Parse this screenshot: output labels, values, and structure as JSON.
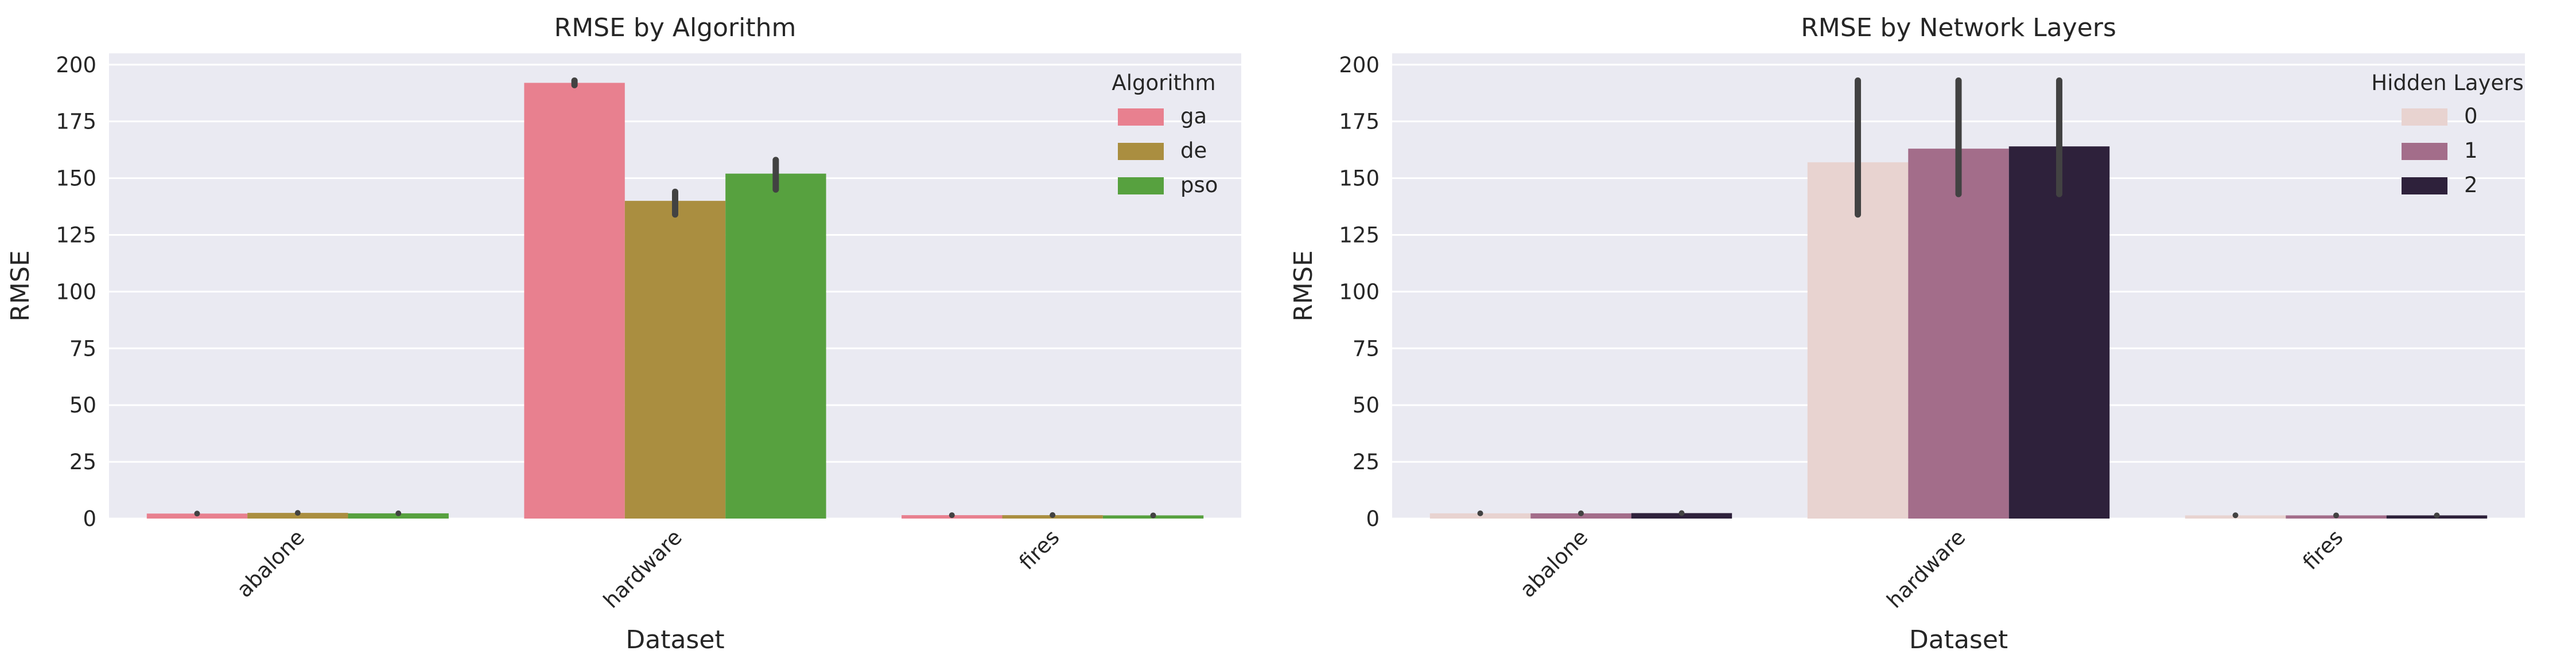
{
  "chart_data": [
    {
      "type": "bar",
      "title": "RMSE by Algorithm",
      "xlabel": "Dataset",
      "ylabel": "RMSE",
      "categories": [
        "abalone",
        "hardware",
        "fires"
      ],
      "ylim": [
        0,
        205
      ],
      "yticks": [
        "0",
        "25",
        "50",
        "75",
        "100",
        "125",
        "150",
        "175",
        "200"
      ],
      "grid": true,
      "legend": {
        "title": "Algorithm",
        "placement": "top-right"
      },
      "series": [
        {
          "name": "ga",
          "color": "#e8808f",
          "values": [
            2.2,
            192.0,
            1.5
          ],
          "err_low": [
            1.8,
            191.0,
            1.3
          ],
          "err_high": [
            2.6,
            193.0,
            1.7
          ]
        },
        {
          "name": "de",
          "color": "#aa8e40",
          "values": [
            2.5,
            140.0,
            1.5
          ],
          "err_low": [
            2.2,
            134.0,
            1.3
          ],
          "err_high": [
            2.8,
            144.0,
            1.8
          ]
        },
        {
          "name": "pso",
          "color": "#57a13f",
          "values": [
            2.3,
            152.0,
            1.4
          ],
          "err_low": [
            2.0,
            145.0,
            1.2
          ],
          "err_high": [
            2.6,
            158.0,
            1.6
          ]
        }
      ]
    },
    {
      "type": "bar",
      "title": "RMSE by Network Layers",
      "xlabel": "Dataset",
      "ylabel": "RMSE",
      "categories": [
        "abalone",
        "hardware",
        "fires"
      ],
      "ylim": [
        0,
        205
      ],
      "yticks": [
        "0",
        "25",
        "50",
        "75",
        "100",
        "125",
        "150",
        "175",
        "200"
      ],
      "grid": true,
      "legend": {
        "title": "Hidden Layers",
        "placement": "top-right"
      },
      "series": [
        {
          "name": "0",
          "color": "#e8d3d0",
          "values": [
            2.3,
            157.0,
            1.4
          ],
          "err_low": [
            2.0,
            134.0,
            1.2
          ],
          "err_high": [
            2.6,
            193.0,
            1.7
          ]
        },
        {
          "name": "1",
          "color": "#a36d8a",
          "values": [
            2.3,
            163.0,
            1.4
          ],
          "err_low": [
            2.0,
            143.0,
            1.2
          ],
          "err_high": [
            2.6,
            193.0,
            1.6
          ]
        },
        {
          "name": "2",
          "color": "#2e213b",
          "values": [
            2.4,
            164.0,
            1.4
          ],
          "err_low": [
            2.1,
            143.0,
            1.2
          ],
          "err_high": [
            2.7,
            193.0,
            1.6
          ]
        }
      ]
    }
  ]
}
